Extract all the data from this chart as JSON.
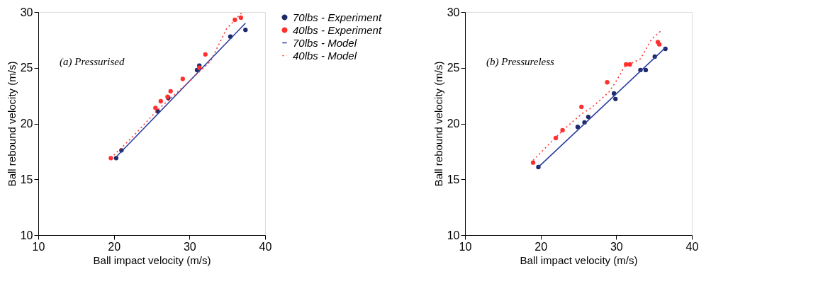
{
  "chart_data": [
    {
      "type": "scatter",
      "annotations": [
        "(a) Pressurised"
      ],
      "xlabel": "Ball impact velocity (m/s)",
      "ylabel": "Ball rebound velocity (m/s)",
      "xlim": [
        10,
        40
      ],
      "xticks": [
        10,
        20,
        30,
        40
      ],
      "ylim": [
        10,
        30
      ],
      "yticks": [
        10,
        15,
        20,
        25,
        30
      ],
      "grid": false,
      "legend": "right",
      "series": [
        {
          "name": "70lbs - Experiment",
          "type": "scatter",
          "marker": "circle",
          "color": "#1f2a6b",
          "x": [
            20.3,
            21.0,
            25.8,
            27.2,
            31.0,
            31.3,
            35.4,
            37.4
          ],
          "values": [
            16.9,
            17.6,
            21.1,
            22.3,
            24.8,
            25.2,
            27.8,
            28.4
          ]
        },
        {
          "name": "40lbs - Experiment",
          "type": "scatter",
          "marker": "circle",
          "color": "#ff3030",
          "x": [
            19.6,
            25.5,
            26.2,
            27.1,
            27.5,
            29.1,
            31.3,
            32.1,
            36.0,
            36.8
          ],
          "values": [
            16.9,
            21.4,
            22.0,
            22.4,
            22.9,
            24.0,
            25.0,
            26.2,
            29.3,
            29.5
          ]
        },
        {
          "name": "70lbs - Model",
          "type": "line",
          "line_style": "solid",
          "color": "#2a3f9a",
          "x": [
            20.3,
            37.4
          ],
          "values": [
            17.0,
            29.0
          ]
        },
        {
          "name": "40lbs - Model",
          "type": "line",
          "line_style": "dotted",
          "color": "#ff3030",
          "x": [
            19.6,
            22.6,
            25.6,
            29.2,
            32.8,
            34.9,
            37.0
          ],
          "values": [
            16.9,
            18.9,
            21.1,
            23.3,
            25.6,
            28.5,
            30.0
          ]
        }
      ]
    },
    {
      "type": "scatter",
      "annotations": [
        "(b) Pressureless"
      ],
      "xlabel": "Ball impact velocity (m/s)",
      "ylabel": "Ball rebound velocity (m/s)",
      "xlim": [
        10,
        40
      ],
      "xticks": [
        10,
        20,
        30,
        40
      ],
      "ylim": [
        10,
        30
      ],
      "yticks": [
        10,
        15,
        20,
        25,
        30
      ],
      "grid": false,
      "legend": false,
      "series": [
        {
          "type": "scatter",
          "marker": "circle",
          "color": "#1f2a6b",
          "x": [
            19.7,
            24.9,
            25.8,
            26.3,
            29.7,
            29.9,
            33.2,
            33.9,
            35.1,
            36.5
          ],
          "values": [
            16.1,
            19.7,
            20.1,
            20.6,
            22.7,
            22.2,
            24.8,
            24.8,
            26.0,
            26.7
          ]
        },
        {
          "type": "scatter",
          "marker": "circle",
          "color": "#ff3030",
          "x": [
            19.0,
            22.0,
            22.9,
            25.4,
            28.8,
            31.3,
            31.8,
            35.5,
            35.7
          ],
          "values": [
            16.5,
            18.7,
            19.4,
            21.5,
            23.7,
            25.3,
            25.3,
            27.3,
            27.1
          ]
        },
        {
          "type": "line",
          "line_style": "solid",
          "color": "#2a3f9a",
          "x": [
            19.7,
            36.5
          ],
          "values": [
            16.1,
            26.8
          ]
        },
        {
          "type": "line",
          "line_style": "dotted",
          "color": "#ff3030",
          "x": [
            19.0,
            23.1,
            25.5,
            26.7,
            29.0,
            29.9,
            31.1,
            33.2,
            34.7,
            35.9
          ],
          "values": [
            16.7,
            19.5,
            20.9,
            21.4,
            22.8,
            23.7,
            25.1,
            25.8,
            27.6,
            28.3
          ]
        }
      ]
    }
  ]
}
